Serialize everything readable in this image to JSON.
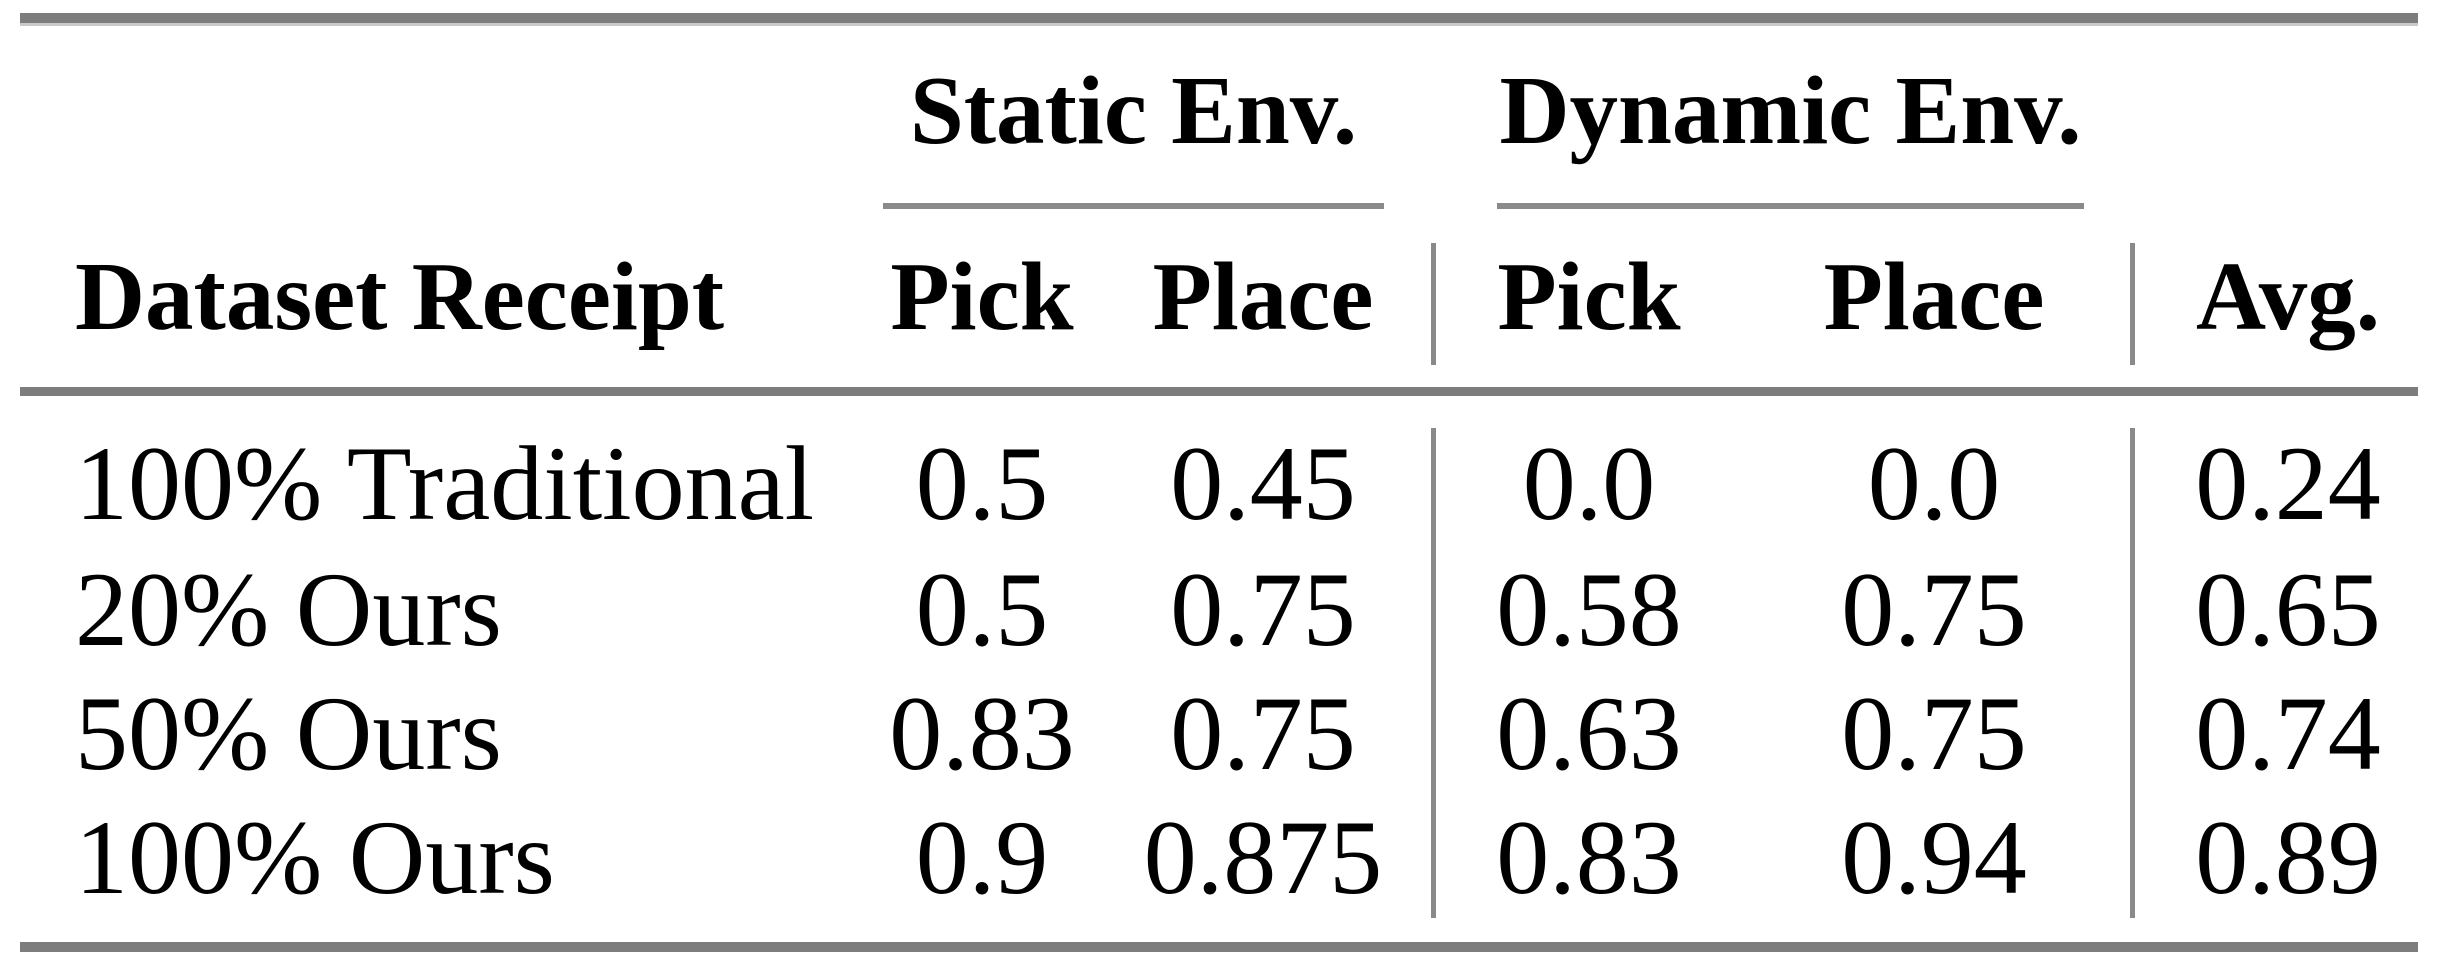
{
  "table": {
    "title_row": {
      "static_group": "Static Env.",
      "dynamic_group": "Dynamic Env."
    },
    "header": {
      "dataset": "Dataset Receipt",
      "static_pick": "Pick",
      "static_place": "Place",
      "dynamic_pick": "Pick",
      "dynamic_place": "Place",
      "avg": "Avg."
    },
    "rows": [
      {
        "label": "100% Traditional",
        "cells": [
          "0.5",
          "0.45",
          "0.0",
          "0.0",
          "0.24"
        ]
      },
      {
        "label": "20% Ours",
        "cells": [
          "0.5",
          "0.75",
          "0.58",
          "0.75",
          "0.65"
        ]
      },
      {
        "label": "50% Ours",
        "cells": [
          "0.83",
          "0.75",
          "0.63",
          "0.75",
          "0.74"
        ]
      },
      {
        "label": "100% Ours",
        "cells": [
          "0.9",
          "0.875",
          "0.83",
          "0.94",
          "0.89"
        ]
      }
    ]
  },
  "colors": {
    "rule_thick": "#7d7d7d",
    "rule_thin": "#8a8a8a",
    "text": "#000000",
    "background": "#ffffff"
  }
}
